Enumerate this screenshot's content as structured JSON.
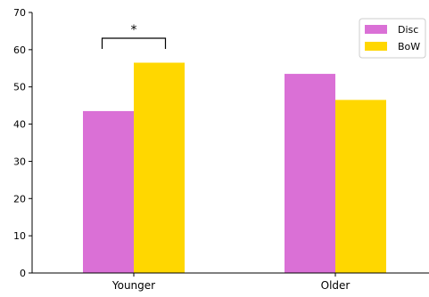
{
  "chart_data": {
    "type": "bar",
    "categories": [
      "Younger",
      "Older"
    ],
    "series": [
      {
        "name": "Disc",
        "color": "#DA70D6",
        "values": [
          43.5,
          53.5
        ]
      },
      {
        "name": "BoW",
        "color": "#FFD700",
        "values": [
          56.5,
          46.5
        ]
      }
    ],
    "ylim": [
      0,
      70
    ],
    "yticks": [
      0,
      10,
      20,
      30,
      40,
      50,
      60,
      70
    ],
    "xlabel": "",
    "ylabel": "",
    "title": "",
    "grid": false,
    "legend_position": "top-right",
    "annotations": [
      {
        "text": "*",
        "type": "significance-bracket",
        "category": "Younger",
        "between_series": [
          "Disc",
          "BoW"
        ]
      }
    ]
  }
}
